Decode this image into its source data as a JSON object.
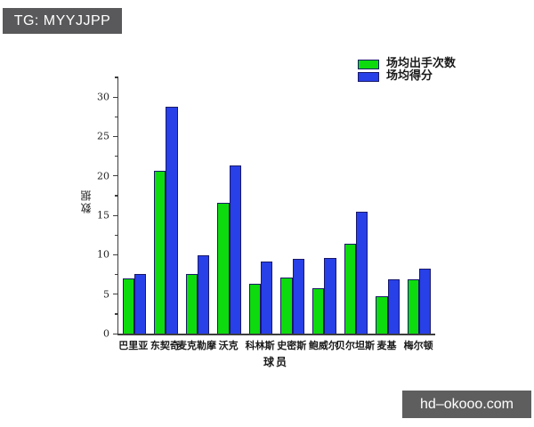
{
  "overlays": {
    "top_left_badge": "TG: MYYJJPP",
    "bottom_right_badge": "hd–okooo.com"
  },
  "colors": {
    "series_shots": "#0ddb0d",
    "series_points": "#2840e8",
    "bar_border": "#191968",
    "axis": "#3d3d3d",
    "badge_top_left_bg": "#59595b",
    "badge_bottom_right_bg": "#5e5e5e"
  },
  "chart_data": {
    "type": "bar",
    "title": "",
    "xlabel": "球员",
    "ylabel": "数据",
    "categories": [
      "巴里亚",
      "东契奇",
      "麦克勒摩",
      "沃克",
      "科林斯",
      "史密斯",
      "鲍威尔",
      "贝尔坦斯",
      "麦基",
      "梅尔顿"
    ],
    "series": [
      {
        "name": "场均出手次数",
        "color": "#0ddb0d",
        "values": [
          7.0,
          20.6,
          7.6,
          16.6,
          6.3,
          7.1,
          5.8,
          11.4,
          4.7,
          6.9
        ]
      },
      {
        "name": "场均得分",
        "color": "#2840e8",
        "values": [
          7.6,
          28.8,
          9.9,
          21.3,
          9.1,
          9.5,
          9.6,
          15.5,
          6.9,
          8.2
        ]
      }
    ],
    "ylim": [
      0,
      32.6
    ],
    "yticks": [
      0,
      5,
      10,
      15,
      20,
      25,
      30
    ],
    "minor_tick_step": 2.5,
    "grid": false,
    "legend_position": "top-right"
  }
}
